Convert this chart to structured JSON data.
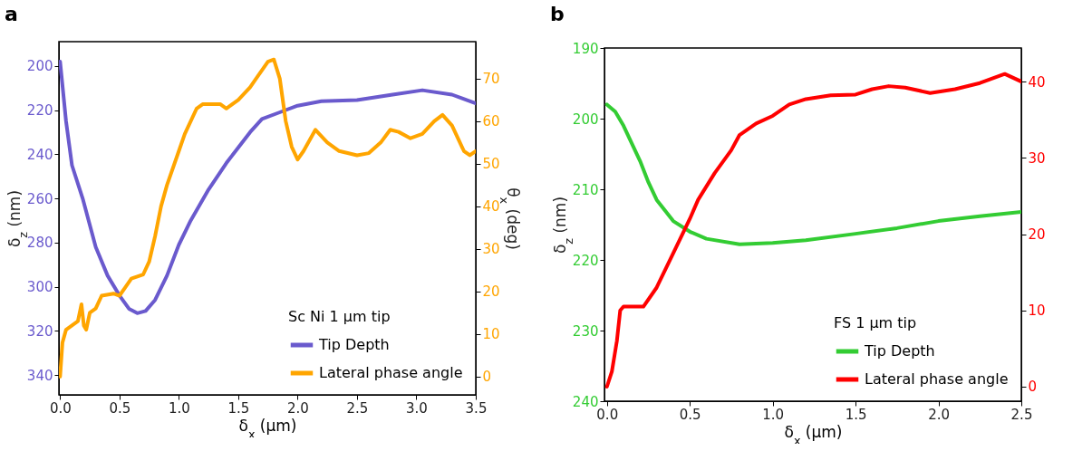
{
  "chart_data": [
    {
      "type": "line",
      "title": "a",
      "xlabel": "δ$_{x}$ (μm)",
      "ylabel": "δ$_{z}$ (nm)",
      "y2label": "θ$_{x}$ (deg)",
      "legend_title": "Sc Ni 1 μm tip",
      "legend": "bottom right",
      "grid": false,
      "xlim": [
        -0.01,
        3.5
      ],
      "xticks": [
        {
          "value": 0,
          "label": "0.0"
        },
        0.5,
        {
          "value": 1,
          "label": "1.0"
        },
        1.5,
        {
          "value": 2,
          "label": "2.0"
        },
        2.5,
        {
          "value": 3,
          "label": "3.0"
        },
        3.5
      ],
      "ylim": [
        349,
        189
      ],
      "yticks": [
        200,
        220,
        240,
        260,
        280,
        300,
        320,
        340
      ],
      "y2lim": [
        -4.3,
        78.7
      ],
      "y2ticks": [
        0,
        10,
        20,
        30,
        40,
        50,
        60,
        70
      ],
      "series": [
        {
          "name": "Tip Depth",
          "color": "#6a5acd",
          "x": [
            0,
            0.05,
            0.1,
            0.19,
            0.3,
            0.4,
            0.5,
            0.58,
            0.65,
            0.72,
            0.8,
            0.9,
            1.0,
            1.1,
            1.25,
            1.4,
            1.5,
            1.6,
            1.7,
            1.85,
            2.0,
            2.2,
            2.5,
            2.8,
            3.05,
            3.3,
            3.5
          ],
          "values": [
            198,
            225,
            245,
            260,
            282,
            295,
            304,
            310,
            312,
            311,
            306,
            295,
            281,
            270,
            256,
            244,
            237,
            230,
            224,
            221,
            218,
            216,
            215.5,
            213,
            211,
            213,
            217
          ]
        },
        {
          "name": "Lateral phase angle",
          "color": "#ffa500",
          "axis": "y2",
          "x": [
            0,
            0.02,
            0.05,
            0.1,
            0.15,
            0.18,
            0.2,
            0.22,
            0.25,
            0.3,
            0.35,
            0.45,
            0.5,
            0.55,
            0.6,
            0.7,
            0.75,
            0.8,
            0.85,
            0.9,
            1.0,
            1.05,
            1.15,
            1.2,
            1.35,
            1.4,
            1.5,
            1.6,
            1.65,
            1.75,
            1.8,
            1.85,
            1.9,
            1.95,
            2.0,
            2.05,
            2.15,
            2.25,
            2.35,
            2.5,
            2.6,
            2.7,
            2.78,
            2.85,
            2.95,
            3.05,
            3.15,
            3.22,
            3.3,
            3.4,
            3.45,
            3.5
          ],
          "values": [
            0,
            8,
            11,
            12,
            13,
            17,
            12,
            11,
            15,
            16,
            19,
            19.5,
            19,
            21,
            23,
            24,
            27,
            33,
            40,
            45,
            53,
            57,
            63,
            64,
            64,
            63,
            65,
            68,
            70,
            74,
            74.5,
            70,
            60,
            54,
            51,
            53,
            58,
            55,
            53,
            52,
            52.5,
            55,
            58,
            57.5,
            56,
            57,
            60,
            61.5,
            59,
            53,
            52,
            53
          ]
        }
      ]
    },
    {
      "type": "line",
      "title": "b",
      "xlabel": "δ$_{x}$ (μm)",
      "ylabel": "δ$_{z}$ (nm)",
      "legend_title": "FS 1 μm tip",
      "legend": "bottom right",
      "grid": false,
      "xlim": [
        -0.015,
        2.5
      ],
      "xticks": [
        {
          "value": 0,
          "label": "0.0"
        },
        0.5,
        {
          "value": 1,
          "label": "1.0"
        },
        1.5,
        {
          "value": 2,
          "label": "2.0"
        },
        2.5
      ],
      "ylim": [
        240,
        190
      ],
      "yticks": [
        190,
        200,
        210,
        220,
        230,
        240
      ],
      "y2lim": [
        -1.9,
        44.4
      ],
      "y2ticks": [
        0,
        10,
        20,
        30,
        40
      ],
      "series": [
        {
          "name": "Tip Depth",
          "color": "#33cc33",
          "x": [
            0,
            0.05,
            0.1,
            0.2,
            0.25,
            0.3,
            0.4,
            0.5,
            0.6,
            0.8,
            1.0,
            1.2,
            1.5,
            1.75,
            2.0,
            2.25,
            2.5
          ],
          "values": [
            198,
            199,
            201,
            206,
            209,
            211.5,
            214.5,
            216,
            217,
            217.8,
            217.6,
            217.2,
            216.3,
            215.5,
            214.5,
            213.8,
            213.2
          ]
        },
        {
          "name": "Lateral phase angle",
          "color": "#ff0000",
          "axis": "y2",
          "x": [
            0,
            0.03,
            0.06,
            0.08,
            0.1,
            0.15,
            0.22,
            0.3,
            0.4,
            0.5,
            0.55,
            0.65,
            0.75,
            0.8,
            0.9,
            1.0,
            1.1,
            1.2,
            1.35,
            1.5,
            1.6,
            1.7,
            1.8,
            1.95,
            2.1,
            2.25,
            2.4,
            2.5
          ],
          "values": [
            0,
            2,
            6,
            10,
            10.5,
            10.5,
            10.5,
            13,
            17.5,
            22,
            24.5,
            28,
            31,
            33,
            34.5,
            35.5,
            37,
            37.7,
            38.2,
            38.3,
            39,
            39.4,
            39.2,
            38.5,
            39,
            39.8,
            41,
            40
          ]
        }
      ]
    }
  ]
}
